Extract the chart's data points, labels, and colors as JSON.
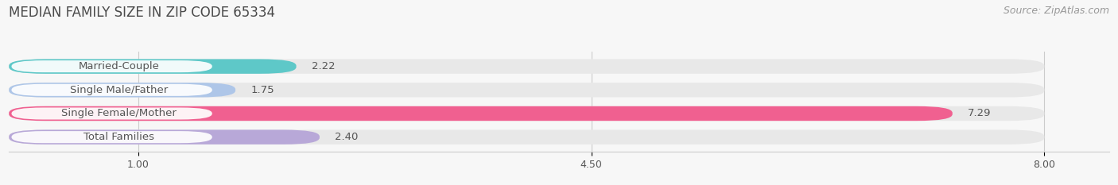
{
  "title": "MEDIAN FAMILY SIZE IN ZIP CODE 65334",
  "source": "Source: ZipAtlas.com",
  "categories": [
    "Married-Couple",
    "Single Male/Father",
    "Single Female/Mother",
    "Total Families"
  ],
  "values": [
    2.22,
    1.75,
    7.29,
    2.4
  ],
  "bar_colors": [
    "#5ec8c8",
    "#aec6e8",
    "#f06090",
    "#b8a8d8"
  ],
  "xlim_min": 0,
  "xlim_max": 8.5,
  "data_min": 0,
  "data_max": 8.0,
  "xticks": [
    1.0,
    4.5,
    8.0
  ],
  "bg_color": "#f7f7f7",
  "bar_bg_color": "#e8e8e8",
  "white_color": "#ffffff",
  "label_color": "#555555",
  "value_color": "#555555",
  "title_color": "#4a4a4a",
  "source_color": "#999999",
  "title_fontsize": 12,
  "source_fontsize": 9,
  "label_fontsize": 9.5,
  "value_fontsize": 9.5,
  "tick_fontsize": 9
}
